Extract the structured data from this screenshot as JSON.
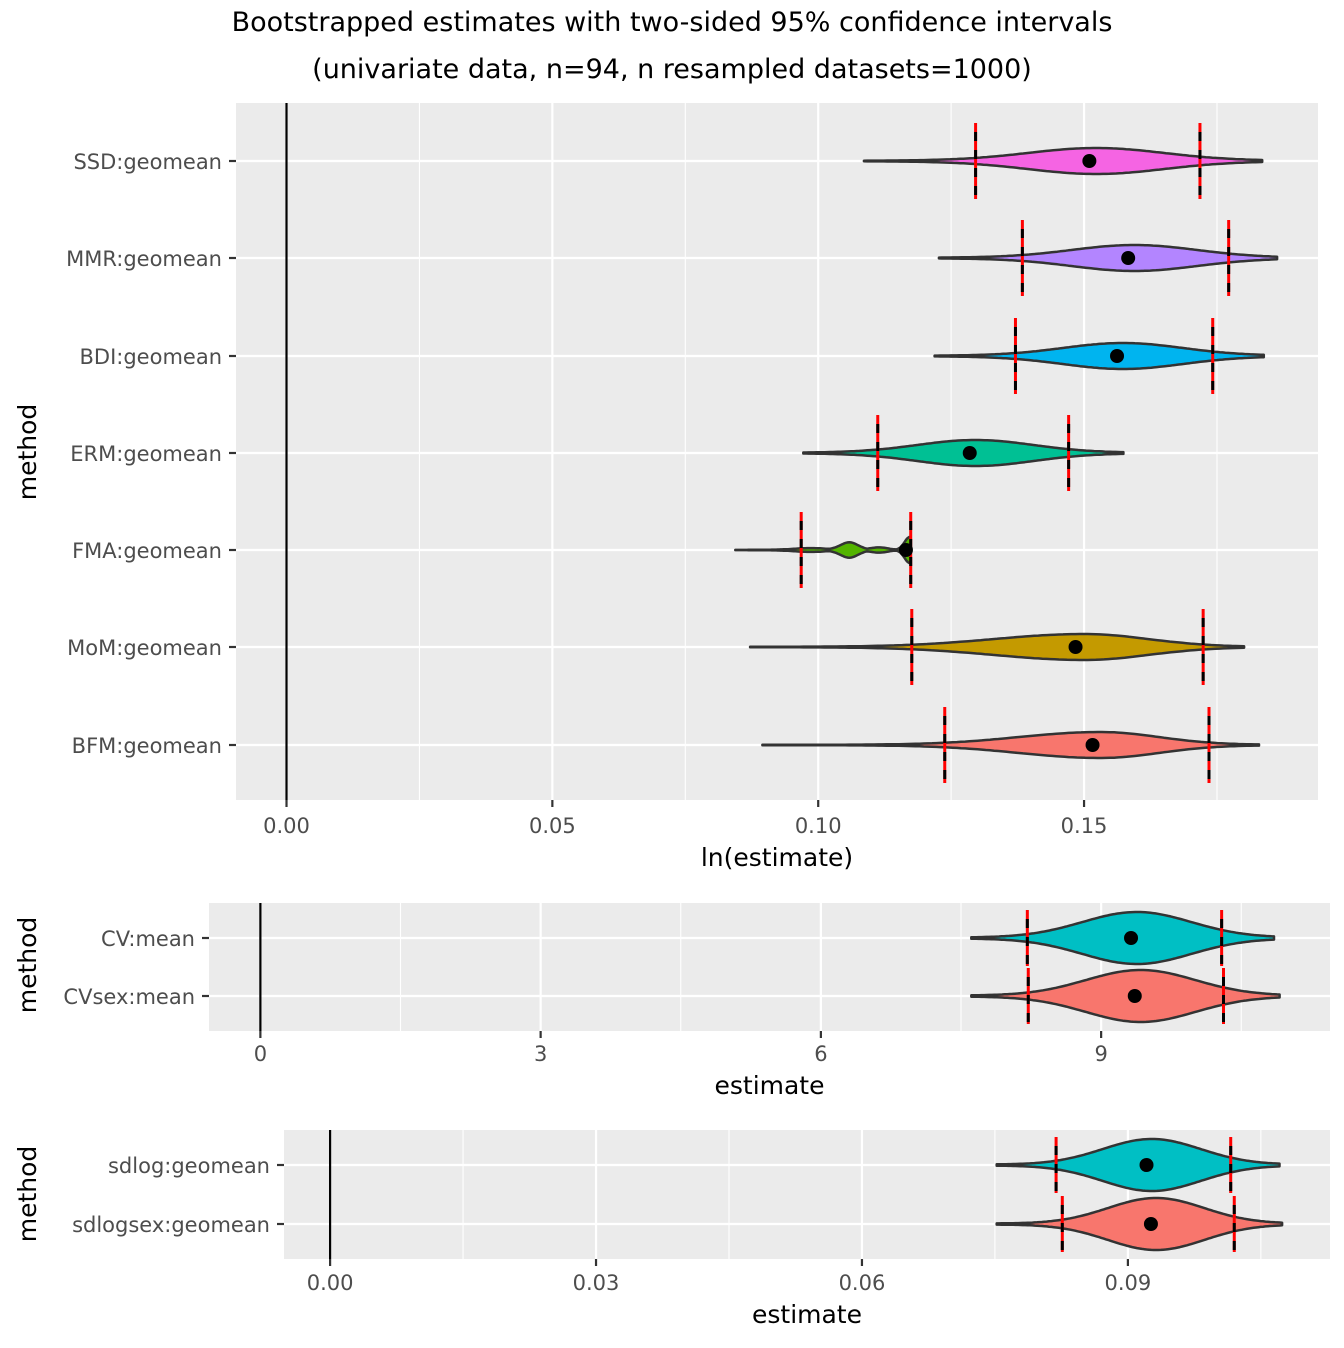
{
  "chart_data": [
    {
      "type": "violin",
      "title": "Bootstrapped estimates with two-sided 95% confidence intervals",
      "subtitle": "(univariate data, n=94, n resampled datasets=1000)",
      "xlabel": "ln(estimate)",
      "ylabel": "method",
      "xlim": [
        -0.0095,
        0.194
      ],
      "xticks": [
        0.0,
        0.05,
        0.1,
        0.15
      ],
      "xtick_labels": [
        "0.00",
        "0.05",
        "0.10",
        "0.15"
      ],
      "reference_line_x": 0,
      "grid": true,
      "categories": [
        "SSD:geomean",
        "MMR:geomean",
        "BDI:geomean",
        "ERM:geomean",
        "FMA:geomean",
        "MoM:geomean",
        "BFM:geomean"
      ],
      "series": [
        {
          "name": "SSD:geomean",
          "color": "#F564E3",
          "estimate": 0.151,
          "ci": [
            0.1296,
            0.1718
          ],
          "range": [
            0.1086,
            0.1835
          ],
          "shape": "unimodal"
        },
        {
          "name": "MMR:geomean",
          "color": "#B385FF",
          "estimate": 0.1583,
          "ci": [
            0.1384,
            0.1772
          ],
          "range": [
            0.1227,
            0.1863
          ],
          "shape": "unimodal"
        },
        {
          "name": "BDI:geomean",
          "color": "#00B4EF",
          "estimate": 0.1562,
          "ci": [
            0.1371,
            0.1742
          ],
          "range": [
            0.1219,
            0.1838
          ],
          "shape": "unimodal"
        },
        {
          "name": "ERM:geomean",
          "color": "#00C094",
          "estimate": 0.1285,
          "ci": [
            0.1112,
            0.1471
          ],
          "range": [
            0.0972,
            0.1574
          ],
          "shape": "unimodal"
        },
        {
          "name": "FMA:geomean",
          "color": "#53B400",
          "estimate": 0.1165,
          "ci": [
            0.0968,
            0.1174
          ],
          "range": [
            0.0844,
            0.1174
          ],
          "shape": "multimodal"
        },
        {
          "name": "MoM:geomean",
          "color": "#C49A00",
          "estimate": 0.1484,
          "ci": [
            0.1176,
            0.1724
          ],
          "range": [
            0.0872,
            0.1801
          ],
          "shape": "skewed"
        },
        {
          "name": "BFM:geomean",
          "color": "#F8766D",
          "estimate": 0.1516,
          "ci": [
            0.1238,
            0.1735
          ],
          "range": [
            0.0895,
            0.1829
          ],
          "shape": "skewed"
        }
      ]
    },
    {
      "type": "violin",
      "xlabel": "estimate",
      "ylabel": "method",
      "xlim": [
        -0.55,
        11.45
      ],
      "xticks": [
        0,
        3,
        6,
        9
      ],
      "xtick_labels": [
        "0",
        "3",
        "6",
        "9"
      ],
      "reference_line_x": 0,
      "grid": true,
      "categories": [
        "CV:mean",
        "CVsex:mean"
      ],
      "series": [
        {
          "name": "CV:mean",
          "color": "#00BFC4",
          "estimate": 9.32,
          "ci": [
            8.21,
            10.29
          ],
          "range": [
            7.61,
            10.85
          ],
          "shape": "wide"
        },
        {
          "name": "CVsex:mean",
          "color": "#F8766D",
          "estimate": 9.36,
          "ci": [
            8.22,
            10.31
          ],
          "range": [
            7.61,
            10.91
          ],
          "shape": "wide"
        }
      ]
    },
    {
      "type": "violin",
      "xlabel": "estimate",
      "ylabel": "method",
      "xlim": [
        -0.0052,
        0.1128
      ],
      "xticks": [
        0.0,
        0.03,
        0.06,
        0.09
      ],
      "xtick_labels": [
        "0.00",
        "0.03",
        "0.06",
        "0.09"
      ],
      "reference_line_x": 0,
      "grid": true,
      "categories": [
        "sdlog:geomean",
        "sdlogsex:geomean"
      ],
      "series": [
        {
          "name": "sdlog:geomean",
          "color": "#00BFC4",
          "estimate": 0.0921,
          "ci": [
            0.0819,
            0.1016
          ],
          "range": [
            0.0752,
            0.1071
          ],
          "shape": "wide"
        },
        {
          "name": "sdlogsex:geomean",
          "color": "#F8766D",
          "estimate": 0.0926,
          "ci": [
            0.0826,
            0.102
          ],
          "range": [
            0.0752,
            0.1074
          ],
          "shape": "wide"
        }
      ]
    }
  ],
  "colors": {
    "panel_bg": "#EBEBEB",
    "grid": "#FFFFFF",
    "ci_dash_a": "#FF0000",
    "ci_dash_b": "#000000",
    "outline": "#333333"
  }
}
